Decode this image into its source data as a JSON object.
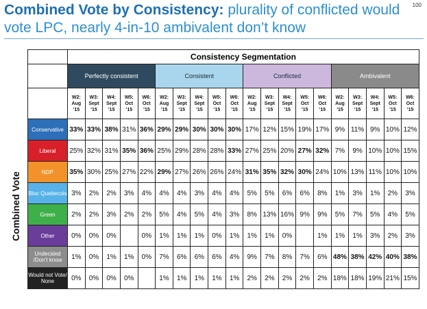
{
  "header": {
    "title_bold": "Combined Vote by Consistency:",
    "title_rest": " plurality of conflicted would vote LPC, nearly 4-in-10 ambivalent don’t know",
    "page_number": "100"
  },
  "table": {
    "row_axis_label": "Combined Vote",
    "segmentation_title": "Consistency Segmentation",
    "groups": [
      "Perfectly consistent",
      "Consistent",
      "Conflicted",
      "Ambivalent"
    ],
    "waves": [
      [
        "W2:",
        "Aug",
        "’15"
      ],
      [
        "W3:",
        "Sept",
        "’15"
      ],
      [
        "W4:",
        "Sept",
        "’15"
      ],
      [
        "W5:",
        "Oct",
        "’15"
      ],
      [
        "W6:",
        "Oct",
        "’15"
      ]
    ],
    "rows": [
      {
        "party": "Conservative",
        "color": "#2d6fb8",
        "values": [
          "33%",
          "33%",
          "38%",
          "31%",
          "36%",
          "29%",
          "29%",
          "30%",
          "30%",
          "30%",
          "17%",
          "12%",
          "15%",
          "19%",
          "17%",
          "9%",
          "11%",
          "9%",
          "10%",
          "12%"
        ],
        "green": [
          0,
          1,
          2,
          4,
          5,
          6,
          7,
          8,
          9
        ]
      },
      {
        "party": "Liberal",
        "color": "#d8202a",
        "values": [
          "25%",
          "32%",
          "31%",
          "35%",
          "36%",
          "25%",
          "29%",
          "28%",
          "28%",
          "33%",
          "27%",
          "25%",
          "20%",
          "27%",
          "32%",
          "7%",
          "9%",
          "10%",
          "10%",
          "15%"
        ],
        "green": [
          3,
          4,
          9,
          13,
          14
        ]
      },
      {
        "party": "NDP",
        "color": "#f3922a",
        "values": [
          "35%",
          "30%",
          "25%",
          "27%",
          "22%",
          "29%",
          "27%",
          "26%",
          "26%",
          "24%",
          "31%",
          "35%",
          "32%",
          "30%",
          "24%",
          "10%",
          "13%",
          "11%",
          "10%",
          "10%"
        ],
        "green": [
          0,
          5,
          10,
          11,
          12,
          13
        ]
      },
      {
        "party": "Bloc Quebecois",
        "color": "#56b2e8",
        "values": [
          "3%",
          "2%",
          "2%",
          "3%",
          "4%",
          "4%",
          "4%",
          "3%",
          "4%",
          "4%",
          "5%",
          "5%",
          "6%",
          "6%",
          "8%",
          "1%",
          "3%",
          "1%",
          "2%",
          "3%"
        ],
        "green": []
      },
      {
        "party": "Green",
        "color": "#3eb04a",
        "values": [
          "2%",
          "2%",
          "3%",
          "2%",
          "2%",
          "5%",
          "4%",
          "5%",
          "4%",
          "3%",
          "8%",
          "13%",
          "16%",
          "9%",
          "9%",
          "5%",
          "7%",
          "5%",
          "4%",
          "5%"
        ],
        "green": []
      },
      {
        "party": "Other",
        "color": "#6a3d9a",
        "values": [
          "0%",
          "0%",
          "0%",
          "",
          "0%",
          "1%",
          "1%",
          "1%",
          "0%",
          "1%",
          "1%",
          "1%",
          "0%",
          "",
          "1%",
          "1%",
          "1%",
          "3%",
          "2%",
          "3%"
        ],
        "green": []
      },
      {
        "party": "Undecided /Don’t know",
        "color": "#8d8d8d",
        "values": [
          "1%",
          "0%",
          "1%",
          "1%",
          "0%",
          "7%",
          "6%",
          "6%",
          "6%",
          "4%",
          "9%",
          "7%",
          "8%",
          "7%",
          "6%",
          "48%",
          "38%",
          "42%",
          "40%",
          "38%"
        ],
        "green": [
          15,
          16,
          17,
          18,
          19
        ]
      },
      {
        "party": "Would not Vote/ None",
        "color": "#222222",
        "values": [
          "0%",
          "0%",
          "0%",
          "0%",
          "",
          "1%",
          "1%",
          "1%",
          "1%",
          "1%",
          "2%",
          "2%",
          "2%",
          "2%",
          "2%",
          "18%",
          "18%",
          "19%",
          "21%",
          "15%"
        ],
        "green": []
      }
    ]
  }
}
